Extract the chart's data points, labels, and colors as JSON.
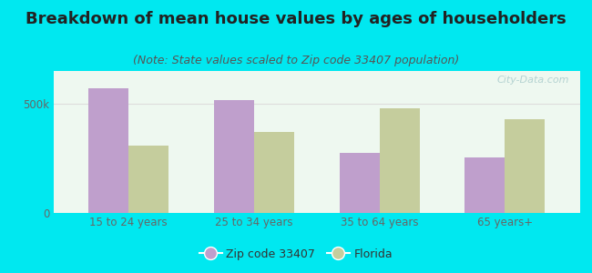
{
  "title": "Breakdown of mean house values by ages of householders",
  "subtitle": "(Note: State values scaled to Zip code 33407 population)",
  "categories": [
    "15 to 24 years",
    "25 to 34 years",
    "35 to 64 years",
    "65 years+"
  ],
  "zip_values": [
    570000,
    515000,
    275000,
    255000
  ],
  "florida_values": [
    310000,
    370000,
    480000,
    430000
  ],
  "zip_color": "#bf9fcc",
  "florida_color": "#c5cd9d",
  "background_outer": "#00e8f0",
  "background_inner": "#eef5ee",
  "ytick_labels": [
    "0",
    "500k"
  ],
  "ytick_values": [
    0,
    500000
  ],
  "ylim": [
    0,
    650000
  ],
  "legend_zip_label": "Zip code 33407",
  "legend_florida_label": "Florida",
  "bar_width": 0.32,
  "title_fontsize": 13,
  "subtitle_fontsize": 9,
  "watermark": "City-Data.com",
  "title_color": "#222222",
  "subtitle_color": "#555555",
  "tick_color": "#666666",
  "grid_color": "#dddddd"
}
